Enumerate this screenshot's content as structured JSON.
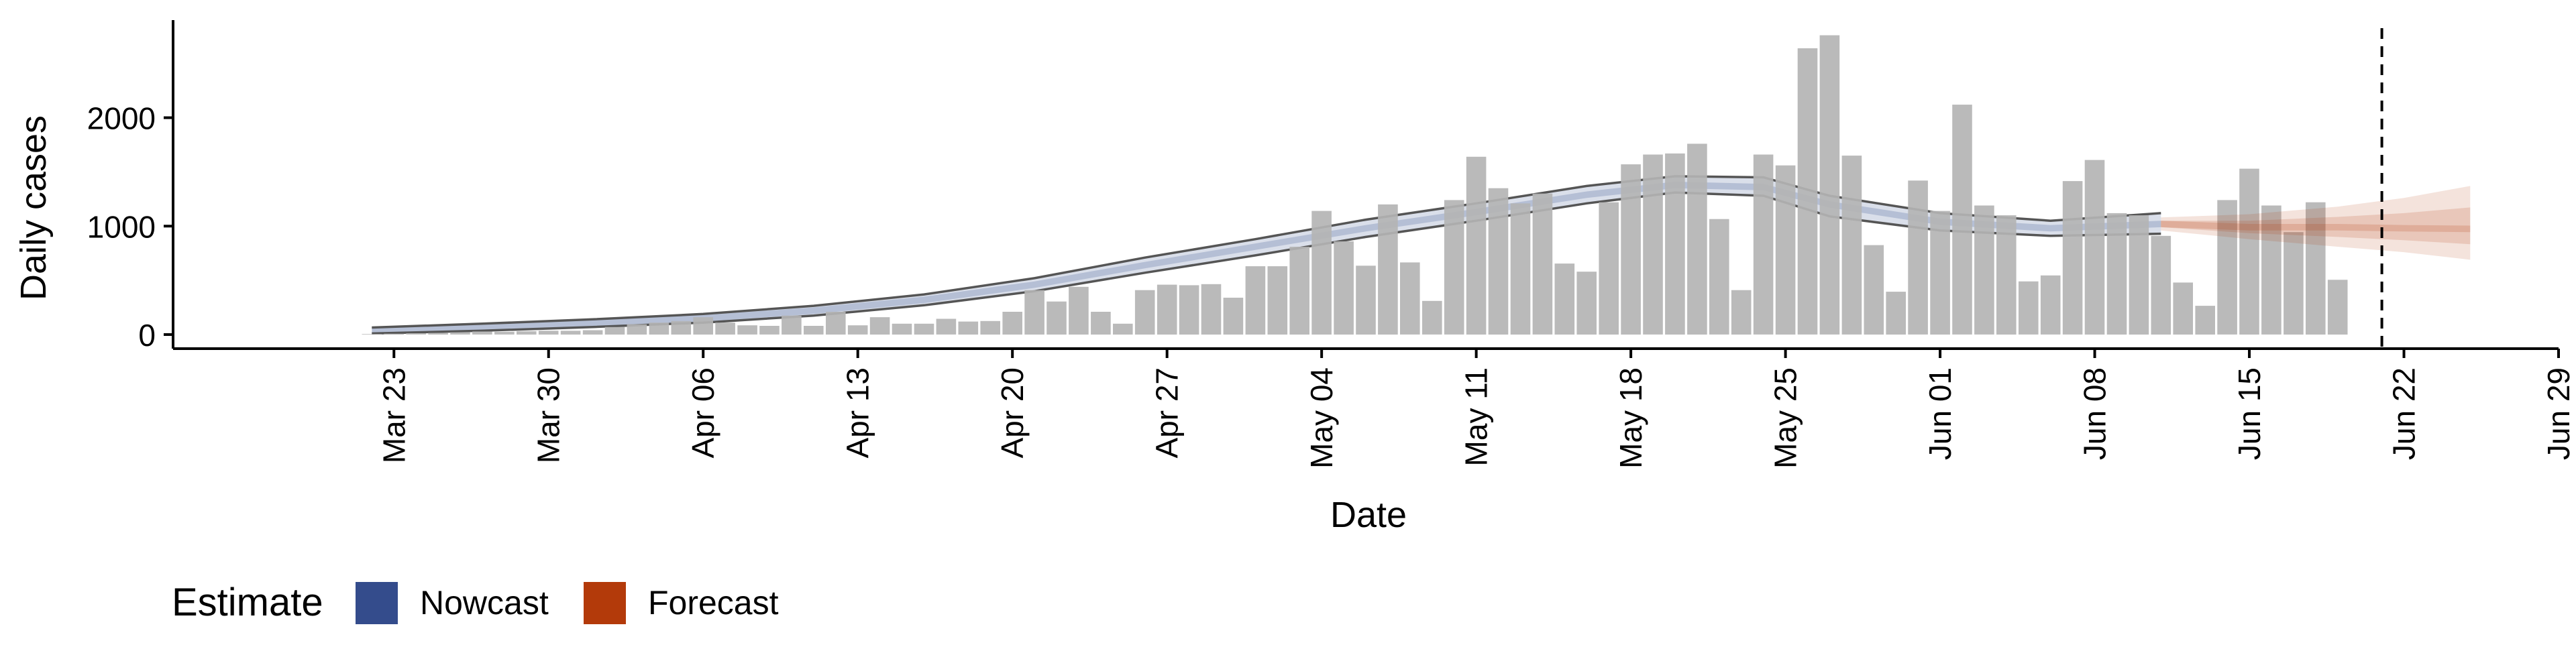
{
  "chart_data": {
    "type": "bar",
    "xlabel": "Date",
    "ylabel": "Daily cases",
    "ylim": [
      -130,
      2900
    ],
    "yticks": [
      0,
      1000,
      2000
    ],
    "xlim": [
      "2020-03-13",
      "2020-06-29"
    ],
    "xticks": [
      {
        "date": "2020-03-23",
        "label": "Mar 23"
      },
      {
        "date": "2020-03-30",
        "label": "Mar 30"
      },
      {
        "date": "2020-04-06",
        "label": "Apr 06"
      },
      {
        "date": "2020-04-13",
        "label": "Apr 13"
      },
      {
        "date": "2020-04-20",
        "label": "Apr 20"
      },
      {
        "date": "2020-04-27",
        "label": "Apr 27"
      },
      {
        "date": "2020-05-04",
        "label": "May 04"
      },
      {
        "date": "2020-05-11",
        "label": "May 11"
      },
      {
        "date": "2020-05-18",
        "label": "May 18"
      },
      {
        "date": "2020-05-25",
        "label": "May 25"
      },
      {
        "date": "2020-06-01",
        "label": "Jun 01"
      },
      {
        "date": "2020-06-08",
        "label": "Jun 08"
      },
      {
        "date": "2020-06-15",
        "label": "Jun 15"
      },
      {
        "date": "2020-06-22",
        "label": "Jun 22"
      },
      {
        "date": "2020-06-29",
        "label": "Jun 29"
      }
    ],
    "grid": false,
    "legend": {
      "position": "bottom-left",
      "title": "Estimate",
      "items": [
        {
          "label": "Nowcast",
          "color": "#344C8C"
        },
        {
          "label": "Forecast",
          "color": "#B33A0A"
        }
      ]
    },
    "reference_line": {
      "date": "2020-06-21",
      "style": "dashed"
    },
    "bar_color": "#B4B4B4",
    "bars": {
      "start": "2020-03-22",
      "values": [
        5,
        8,
        12,
        15,
        20,
        28,
        25,
        30,
        35,
        35,
        40,
        70,
        95,
        110,
        125,
        160,
        110,
        85,
        80,
        175,
        80,
        210,
        85,
        160,
        100,
        100,
        145,
        120,
        125,
        210,
        410,
        305,
        440,
        210,
        100,
        410,
        460,
        455,
        465,
        340,
        630,
        630,
        810,
        1140,
        860,
        635,
        1200,
        665,
        310,
        1240,
        1640,
        1350,
        1210,
        1300,
        655,
        580,
        1220,
        1570,
        1660,
        1670,
        1760,
        1065,
        410,
        1660,
        1560,
        2640,
        2760,
        1650,
        825,
        395,
        1420,
        1140,
        2120,
        1190,
        1100,
        490,
        545,
        1415,
        1610,
        1120,
        1100,
        910,
        480,
        265,
        1240,
        1530,
        1190,
        945,
        1220,
        505
      ]
    },
    "series": [
      {
        "name": "Nowcast",
        "color": "#344C8C",
        "points": [
          [
            "2020-03-22",
            40
          ],
          [
            "2020-03-27",
            70
          ],
          [
            "2020-04-01",
            105
          ],
          [
            "2020-04-06",
            150
          ],
          [
            "2020-04-11",
            220
          ],
          [
            "2020-04-16",
            320
          ],
          [
            "2020-04-21",
            460
          ],
          [
            "2020-04-26",
            640
          ],
          [
            "2020-05-01",
            810
          ],
          [
            "2020-05-06",
            980
          ],
          [
            "2020-05-11",
            1130
          ],
          [
            "2020-05-16",
            1290
          ],
          [
            "2020-05-20",
            1380
          ],
          [
            "2020-05-24",
            1360
          ],
          [
            "2020-05-27",
            1200
          ],
          [
            "2020-06-01",
            1040
          ],
          [
            "2020-06-06",
            980
          ],
          [
            "2020-06-11",
            1020
          ]
        ],
        "lower": [
          [
            "2020-03-22",
            10
          ],
          [
            "2020-03-27",
            35
          ],
          [
            "2020-04-01",
            70
          ],
          [
            "2020-04-06",
            110
          ],
          [
            "2020-04-11",
            175
          ],
          [
            "2020-04-16",
            270
          ],
          [
            "2020-04-21",
            400
          ],
          [
            "2020-04-26",
            570
          ],
          [
            "2020-05-01",
            730
          ],
          [
            "2020-05-06",
            900
          ],
          [
            "2020-05-11",
            1050
          ],
          [
            "2020-05-16",
            1210
          ],
          [
            "2020-05-20",
            1310
          ],
          [
            "2020-05-24",
            1280
          ],
          [
            "2020-05-27",
            1090
          ],
          [
            "2020-06-01",
            960
          ],
          [
            "2020-06-06",
            910
          ],
          [
            "2020-06-11",
            930
          ]
        ],
        "upper": [
          [
            "2020-03-22",
            65
          ],
          [
            "2020-03-27",
            100
          ],
          [
            "2020-04-01",
            140
          ],
          [
            "2020-04-06",
            190
          ],
          [
            "2020-04-11",
            265
          ],
          [
            "2020-04-16",
            370
          ],
          [
            "2020-04-21",
            520
          ],
          [
            "2020-04-26",
            710
          ],
          [
            "2020-05-01",
            880
          ],
          [
            "2020-05-06",
            1060
          ],
          [
            "2020-05-11",
            1210
          ],
          [
            "2020-05-16",
            1370
          ],
          [
            "2020-05-20",
            1460
          ],
          [
            "2020-05-24",
            1450
          ],
          [
            "2020-05-27",
            1280
          ],
          [
            "2020-06-01",
            1120
          ],
          [
            "2020-06-06",
            1050
          ],
          [
            "2020-06-11",
            1120
          ]
        ]
      },
      {
        "name": "Forecast",
        "color": "#B33A0A",
        "points": [
          [
            "2020-06-11",
            1020
          ],
          [
            "2020-06-15",
            990
          ],
          [
            "2020-06-19",
            990
          ],
          [
            "2020-06-22",
            980
          ],
          [
            "2020-06-25",
            975
          ]
        ],
        "lower": [
          [
            "2020-06-11",
            960
          ],
          [
            "2020-06-15",
            880
          ],
          [
            "2020-06-19",
            810
          ],
          [
            "2020-06-22",
            760
          ],
          [
            "2020-06-25",
            690
          ]
        ],
        "upper": [
          [
            "2020-06-11",
            1080
          ],
          [
            "2020-06-15",
            1110
          ],
          [
            "2020-06-19",
            1180
          ],
          [
            "2020-06-22",
            1260
          ],
          [
            "2020-06-25",
            1370
          ]
        ]
      }
    ]
  }
}
